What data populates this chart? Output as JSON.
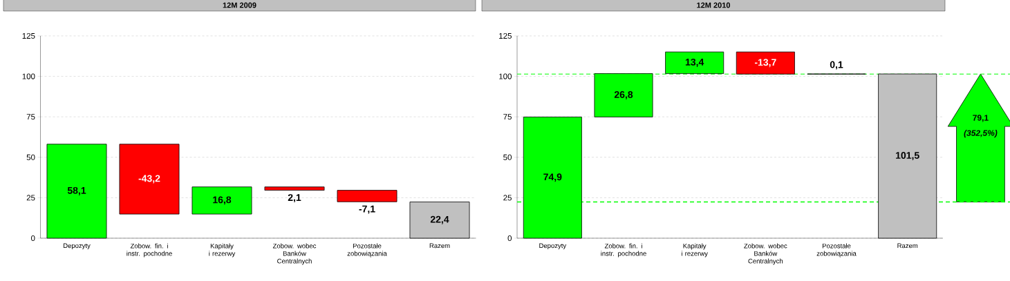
{
  "chart_data": [
    {
      "type": "bar",
      "title": "12M 2009",
      "categories": [
        "Depozyty",
        "Zobow. fin. i instr. pochodne",
        "Kapitały i rezerwy",
        "Zobow. wobec Banków Centralnych",
        "Pozostałe zobowiązania",
        "Razem"
      ],
      "values": [
        58.1,
        -43.2,
        16.8,
        -2.1,
        -7.1,
        22.4
      ],
      "base": [
        0,
        58.1,
        14.9,
        31.7,
        29.6,
        0
      ],
      "colors": [
        "#00ff00",
        "#ff0000",
        "#00ff00",
        "#ff0000",
        "#ff0000",
        "#c0c0c0"
      ],
      "value_labels": [
        "58,1",
        "-43,2",
        "16,8",
        "2,1",
        "-7,1",
        "22,4"
      ],
      "ylim": [
        0,
        125
      ],
      "yticks": [
        0,
        25,
        50,
        75,
        100,
        125
      ],
      "grid": "y"
    },
    {
      "type": "bar",
      "title": "12M 2010",
      "categories": [
        "Depozyty",
        "Zobow. fin. i instr. pochodne",
        "Kapitały i rezerwy",
        "Zobow. wobec Banków Centralnych",
        "Pozostałe zobowiązania",
        "Razem"
      ],
      "values": [
        74.9,
        26.8,
        13.4,
        -13.7,
        0.1,
        101.5
      ],
      "base": [
        0,
        74.9,
        101.7,
        115.1,
        101.4,
        0
      ],
      "colors": [
        "#00ff00",
        "#00ff00",
        "#00ff00",
        "#ff0000",
        "#000000",
        "#c0c0c0"
      ],
      "value_labels": [
        "74,9",
        "26,8",
        "13,4",
        "-13,7",
        "0,1",
        "101,5"
      ],
      "ylim": [
        0,
        125
      ],
      "yticks": [
        0,
        25,
        50,
        75,
        100,
        125
      ],
      "grid": "y",
      "ref_lines": [
        {
          "axis": "y",
          "value": 22.4,
          "color": "#00ff00",
          "line_style": "dashed"
        },
        {
          "axis": "y",
          "value": 101.5,
          "color": "#00ff00",
          "line_style": "dashed"
        }
      ],
      "annotations": [
        "79,1",
        "(352,5%)"
      ]
    }
  ]
}
